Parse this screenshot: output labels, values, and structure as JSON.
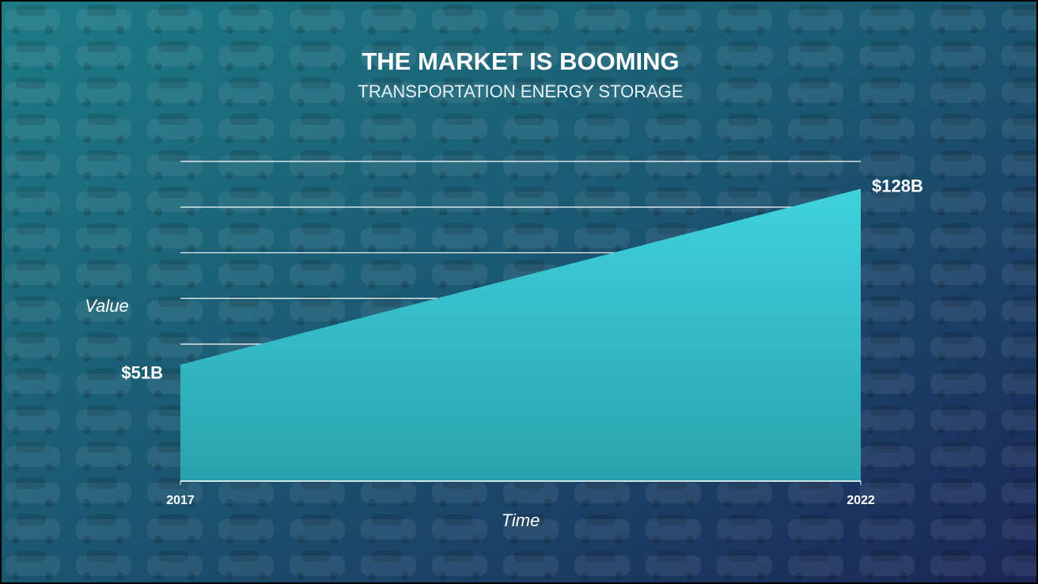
{
  "chart_data": {
    "type": "area",
    "title": "THE MARKET IS BOOMING",
    "subtitle": "TRANSPORTATION ENERGY STORAGE",
    "x_label": "Time",
    "y_label": "Value",
    "x": [
      2017,
      2022
    ],
    "xlim": [
      2017,
      2022
    ],
    "xticks": [
      2017,
      2022
    ],
    "values": [
      51,
      128
    ],
    "value_labels": [
      "$51B",
      "$128B"
    ],
    "ylim": [
      0,
      140
    ],
    "yticks": [
      0,
      20,
      40,
      60,
      80,
      100,
      120,
      140
    ],
    "grid": true,
    "color": "#3ccbd6"
  }
}
